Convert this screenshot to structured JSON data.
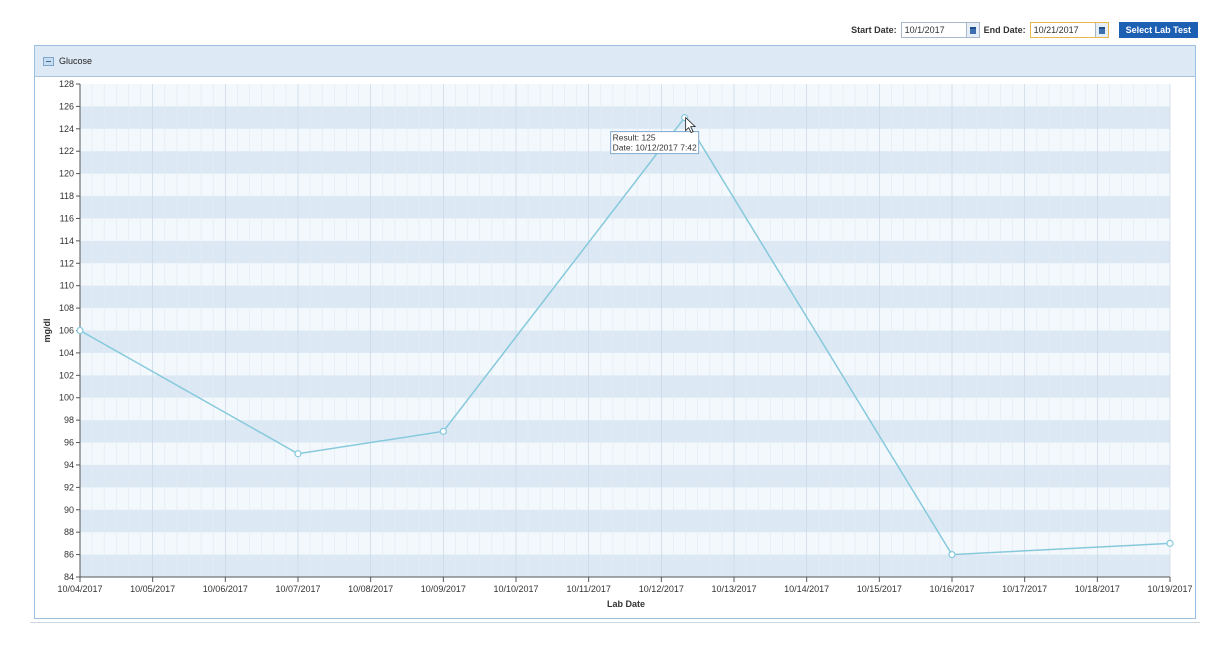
{
  "toolbar": {
    "start_label": "Start Date:",
    "start_value": "10/1/2017",
    "end_label": "End Date:",
    "end_value": "10/21/2017",
    "select_button": "Select Lab Test"
  },
  "panel": {
    "title": "Glucose"
  },
  "colors": {
    "line": "#86c9dc",
    "band": "#dce9f5",
    "band_alt": "#f3f8fc",
    "button": "#1d5fb3"
  },
  "icons": {
    "calendar": "calendar-icon",
    "collapse": "collapse-icon",
    "cursor": "pointer-cursor-icon"
  },
  "tooltip": {
    "result": "Result: 125",
    "date": "Date: 10/12/2017 7:42"
  },
  "chart_data": {
    "type": "line",
    "title": "",
    "xlabel": "Lab Date",
    "ylabel": "mg/dl",
    "x_ticks": [
      "10/04/2017",
      "10/05/2017",
      "10/06/2017",
      "10/07/2017",
      "10/08/2017",
      "10/09/2017",
      "10/10/2017",
      "10/11/2017",
      "10/12/2017",
      "10/13/2017",
      "10/14/2017",
      "10/15/2017",
      "10/16/2017",
      "10/17/2017",
      "10/18/2017",
      "10/19/2017"
    ],
    "xlim": [
      "10/04/2017",
      "10/19/2017"
    ],
    "ylim": [
      84,
      128
    ],
    "y_ticks": [
      84,
      86,
      88,
      90,
      92,
      94,
      96,
      98,
      100,
      102,
      104,
      106,
      108,
      110,
      112,
      114,
      116,
      118,
      120,
      122,
      124,
      126,
      128
    ],
    "grid": true,
    "series": [
      {
        "points": [
          {
            "x": "10/04/2017",
            "y": 106
          },
          {
            "x": "10/07/2017",
            "y": 95
          },
          {
            "x": "10/09/2017",
            "y": 97
          },
          {
            "x": "10/12/2017 07:42",
            "y": 125
          },
          {
            "x": "10/16/2017",
            "y": 86
          },
          {
            "x": "10/19/2017",
            "y": 87
          }
        ]
      }
    ]
  }
}
